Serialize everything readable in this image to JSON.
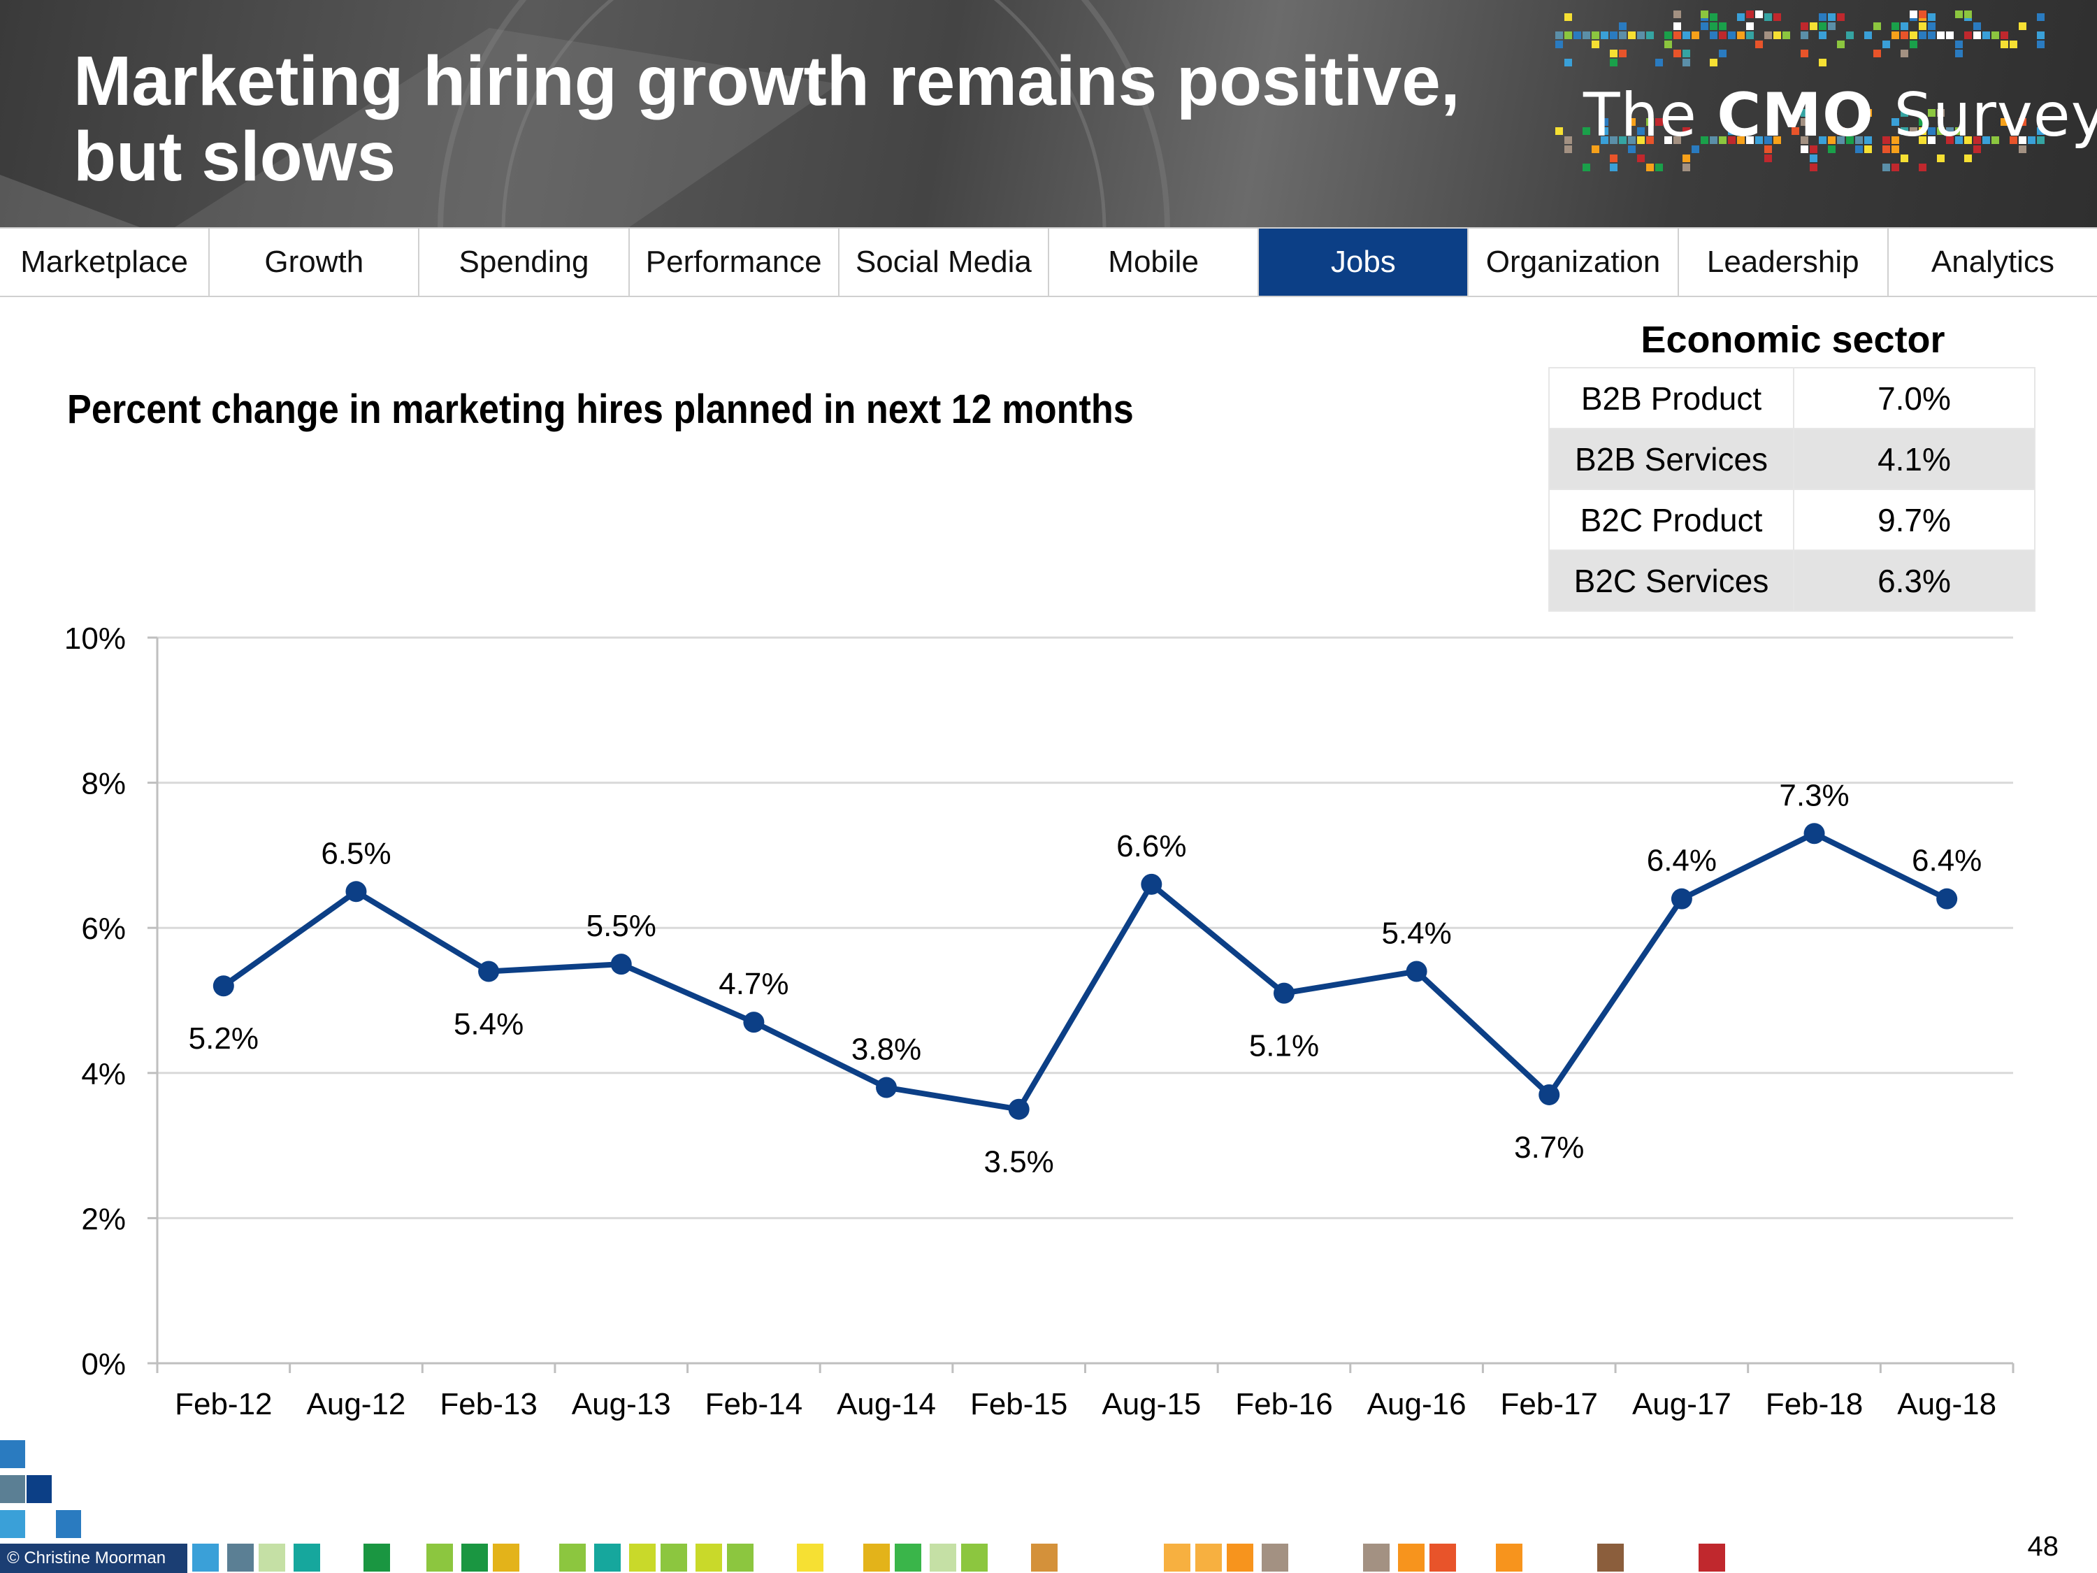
{
  "header": {
    "title_line1": "Marketing hiring growth remains positive,",
    "title_line2": "but slows",
    "logo_prefix": "The",
    "logo_bold": "CMO",
    "logo_suffix": "Survey"
  },
  "nav": {
    "tabs": [
      "Marketplace",
      "Growth",
      "Spending",
      "Performance",
      "Social Media",
      "Mobile",
      "Jobs",
      "Organization",
      "Leadership",
      "Analytics"
    ],
    "active": "Jobs"
  },
  "sector": {
    "title": "Economic sector",
    "rows": [
      {
        "label": "B2B Product",
        "value": "7.0%"
      },
      {
        "label": "B2B Services",
        "value": "4.1%"
      },
      {
        "label": "B2C Product",
        "value": "9.7%"
      },
      {
        "label": "B2C Services",
        "value": "6.3%"
      }
    ]
  },
  "chart_data": {
    "type": "line",
    "title": "Percent change in marketing hires planned in next 12 months",
    "categories": [
      "Feb-12",
      "Aug-12",
      "Feb-13",
      "Aug-13",
      "Feb-14",
      "Aug-14",
      "Feb-15",
      "Aug-15",
      "Feb-16",
      "Aug-16",
      "Feb-17",
      "Aug-17",
      "Feb-18",
      "Aug-18"
    ],
    "values": [
      5.2,
      6.5,
      5.4,
      5.5,
      4.7,
      3.8,
      3.5,
      6.6,
      5.1,
      5.4,
      3.7,
      6.4,
      7.3,
      6.4
    ],
    "labels": [
      "5.2%",
      "6.5%",
      "5.4%",
      "5.5%",
      "4.7%",
      "3.8%",
      "3.5%",
      "6.6%",
      "5.1%",
      "5.4%",
      "3.7%",
      "6.4%",
      "7.3%",
      "6.4%"
    ],
    "label_positions": [
      "below",
      "above",
      "below",
      "above",
      "above",
      "above",
      "below",
      "above",
      "below",
      "above",
      "below",
      "above",
      "above",
      "above"
    ],
    "yticks": [
      "0%",
      "2%",
      "4%",
      "6%",
      "8%",
      "10%"
    ],
    "ylim": [
      0,
      10
    ],
    "xlabel": "",
    "ylabel": "",
    "grid": true,
    "line_color": "#0c3f86"
  },
  "footer": {
    "credit": "© Christine Moorman",
    "page_number": "48"
  }
}
